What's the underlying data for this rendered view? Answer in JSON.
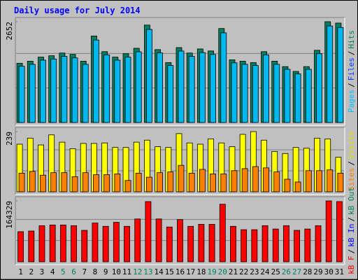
{
  "title": "Daily usage for July 2014",
  "chart_data": [
    {
      "type": "bar",
      "ylim": [
        0,
        2652
      ],
      "yticks": [
        2652
      ],
      "separator": "/",
      "legend": [
        {
          "text": "Pages",
          "color": "#00c0ff"
        },
        {
          "text": "Files",
          "color": "#0040ff"
        },
        {
          "text": "Hits",
          "color": "#008060"
        }
      ],
      "series": [
        {
          "color": "#008060",
          "values": [
            1559,
            1613,
            1720,
            1756,
            1828,
            1792,
            1613,
            2276,
            1864,
            1720,
            1810,
            1953,
            2563,
            1918,
            1577,
            1971,
            1828,
            1935,
            1882,
            2473,
            1649,
            1613,
            1577,
            1864,
            1613,
            1470,
            1344,
            1470,
            1900,
            2652,
            2616
          ]
        },
        {
          "color": "#00b8f0",
          "values": [
            1480,
            1530,
            1640,
            1670,
            1740,
            1700,
            1530,
            2170,
            1780,
            1640,
            1720,
            1860,
            2450,
            1830,
            1500,
            1880,
            1740,
            1840,
            1790,
            2360,
            1570,
            1530,
            1500,
            1780,
            1530,
            1400,
            1280,
            1400,
            1810,
            2540,
            2500
          ]
        }
      ]
    },
    {
      "type": "bar",
      "ylim": [
        0,
        239
      ],
      "yticks": [
        239
      ],
      "separator": "/",
      "legend": [
        {
          "text": "Sites",
          "color": "#ff8000"
        },
        {
          "text": "Visits",
          "color": "#e0e000"
        }
      ],
      "series": [
        {
          "color": "#ffff00",
          "values": [
            189,
            213,
            186,
            226,
            197,
            171,
            192,
            192,
            194,
            176,
            176,
            197,
            205,
            179,
            176,
            231,
            194,
            189,
            210,
            194,
            179,
            228,
            239,
            205,
            160,
            152,
            176,
            173,
            213,
            210,
            137
          ]
        },
        {
          "color": "#ff8000",
          "values": [
            74,
            81,
            66,
            76,
            76,
            60,
            76,
            68,
            68,
            71,
            45,
            74,
            58,
            76,
            79,
            105,
            74,
            89,
            71,
            71,
            84,
            92,
            100,
            95,
            79,
            50,
            39,
            84,
            84,
            87,
            74
          ]
        }
      ]
    },
    {
      "type": "bar",
      "ylim": [
        0,
        164329
      ],
      "yticks": [
        164329
      ],
      "separator": "/",
      "legend": [
        {
          "text": "kB F",
          "color": "#ff0000"
        },
        {
          "text": "kB In",
          "color": "#0000ff"
        },
        {
          "text": "kB Out",
          "color": "#008060"
        }
      ],
      "series": [
        {
          "color": "#ff0000",
          "values": [
            81261,
            83067,
            97513,
            99319,
            99319,
            97513,
            84873,
            104736,
            95707,
            106541,
            95707,
            115571,
            162522,
            115571,
            93902,
            113765,
            95707,
            101125,
            101125,
            155299,
            95707,
            86678,
            86678,
            97513,
            88484,
            97513,
            84873,
            88484,
            97513,
            164329,
            162522
          ]
        }
      ],
      "categories": [
        "1",
        "2",
        "3",
        "4",
        "5",
        "6",
        "7",
        "8",
        "9",
        "10",
        "11",
        "12",
        "13",
        "14",
        "15",
        "16",
        "17",
        "18",
        "19",
        "20",
        "21",
        "22",
        "23",
        "24",
        "25",
        "26",
        "27",
        "28",
        "29",
        "30",
        "31"
      ],
      "category_colors": [
        "#000000",
        "#000000",
        "#000000",
        "#000000",
        "#008060",
        "#008060",
        "#000000",
        "#000000",
        "#000000",
        "#000000",
        "#000000",
        "#008060",
        "#008060",
        "#000000",
        "#000000",
        "#000000",
        "#000000",
        "#000000",
        "#008060",
        "#008060",
        "#000000",
        "#000000",
        "#000000",
        "#000000",
        "#000000",
        "#008060",
        "#008060",
        "#000000",
        "#000000",
        "#000000",
        "#000000"
      ]
    }
  ]
}
